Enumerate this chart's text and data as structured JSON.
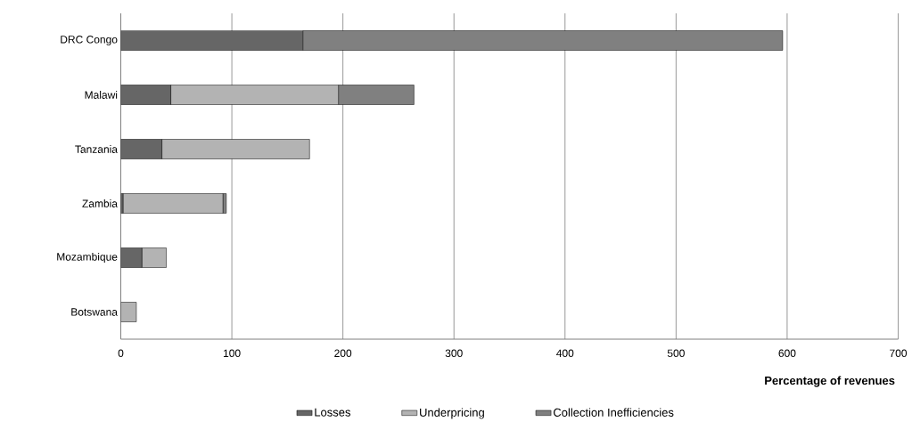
{
  "chart_data": {
    "type": "bar",
    "orientation": "horizontal",
    "stacked": true,
    "xlabel": "Percentage of revenues",
    "categories": [
      "DRC Congo",
      "Malawi",
      "Tanzania",
      "Zambia",
      "Mozambique",
      "Botswana"
    ],
    "series": [
      {
        "name": "Losses",
        "color": "#666666",
        "values": [
          164,
          45,
          37,
          2,
          19,
          0
        ]
      },
      {
        "name": "Underpricing",
        "color": "#b3b3b3",
        "values": [
          0,
          151,
          133,
          90,
          22,
          14
        ]
      },
      {
        "name": "Collection Inefficiencies",
        "color": "#808080",
        "values": [
          432,
          68,
          0,
          3,
          0,
          0
        ]
      }
    ],
    "xlim": [
      0,
      700
    ],
    "xticks": [
      0,
      100,
      200,
      300,
      400,
      500,
      600,
      700
    ],
    "grid": "x",
    "legend": "bottom"
  }
}
